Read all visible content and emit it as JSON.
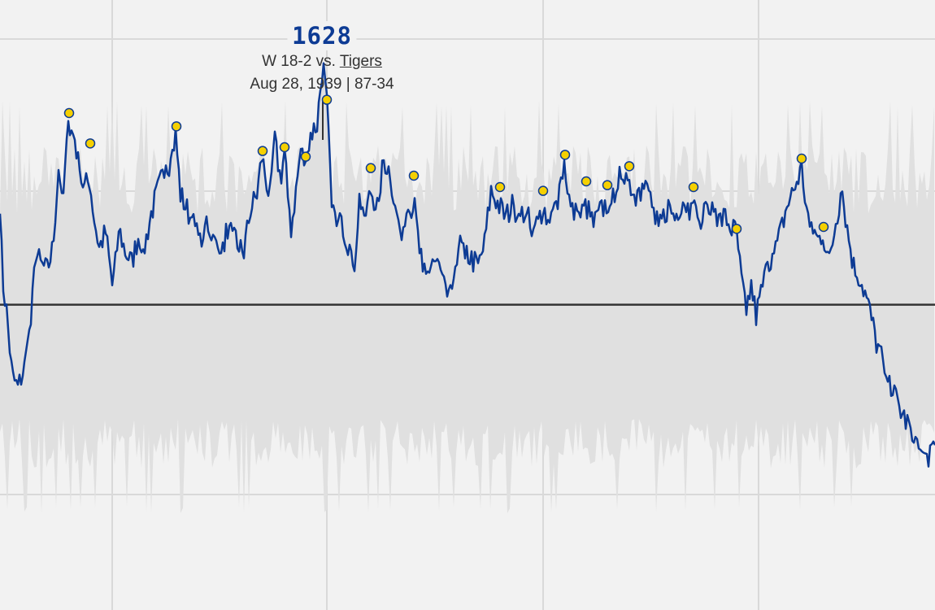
{
  "tooltip": {
    "rating": "1628",
    "result_prefix": "W 18-2 vs.",
    "opponent": "Tigers",
    "date_record": "Aug 28, 1939 | 87-34"
  },
  "colors": {
    "background": "#f2f2f2",
    "grid": "#d9d9d9",
    "band": "#e0e0e0",
    "line": "#0d3b94",
    "marker_fill": "#f5d000",
    "marker_stroke": "#0d3b94",
    "baseline": "#333333"
  },
  "chart_data": {
    "type": "line",
    "grid": true,
    "baseline_y": 1500,
    "ylim": [
      1400,
      1640
    ],
    "highlight_point": {
      "game": 397,
      "rating": 1628
    },
    "keypoints": [
      [
        0,
        1546
      ],
      [
        4,
        1510
      ],
      [
        8,
        1497
      ],
      [
        15,
        1462
      ],
      [
        22,
        1456
      ],
      [
        30,
        1467
      ],
      [
        38,
        1490
      ],
      [
        44,
        1528
      ],
      [
        50,
        1521
      ],
      [
        58,
        1518
      ],
      [
        65,
        1530
      ],
      [
        72,
        1572
      ],
      [
        78,
        1558
      ],
      [
        84,
        1594
      ],
      [
        92,
        1588
      ],
      [
        98,
        1568
      ],
      [
        104,
        1562
      ],
      [
        110,
        1566
      ],
      [
        116,
        1545
      ],
      [
        122,
        1530
      ],
      [
        130,
        1538
      ],
      [
        138,
        1510
      ],
      [
        146,
        1540
      ],
      [
        154,
        1528
      ],
      [
        162,
        1522
      ],
      [
        170,
        1536
      ],
      [
        178,
        1531
      ],
      [
        186,
        1548
      ],
      [
        194,
        1560
      ],
      [
        202,
        1570
      ],
      [
        210,
        1575
      ],
      [
        216,
        1590
      ],
      [
        222,
        1558
      ],
      [
        230,
        1550
      ],
      [
        238,
        1542
      ],
      [
        246,
        1532
      ],
      [
        254,
        1544
      ],
      [
        262,
        1536
      ],
      [
        270,
        1524
      ],
      [
        280,
        1540
      ],
      [
        290,
        1534
      ],
      [
        300,
        1528
      ],
      [
        308,
        1550
      ],
      [
        316,
        1558
      ],
      [
        322,
        1578
      ],
      [
        330,
        1560
      ],
      [
        338,
        1586
      ],
      [
        345,
        1566
      ],
      [
        350,
        1581
      ],
      [
        358,
        1540
      ],
      [
        364,
        1560
      ],
      [
        370,
        1582
      ],
      [
        376,
        1572
      ],
      [
        382,
        1590
      ],
      [
        390,
        1595
      ],
      [
        397,
        1628
      ],
      [
        402,
        1605
      ],
      [
        408,
        1555
      ],
      [
        414,
        1540
      ],
      [
        420,
        1544
      ],
      [
        428,
        1532
      ],
      [
        436,
        1522
      ],
      [
        442,
        1556
      ],
      [
        450,
        1548
      ],
      [
        456,
        1560
      ],
      [
        464,
        1552
      ],
      [
        472,
        1576
      ],
      [
        480,
        1570
      ],
      [
        486,
        1550
      ],
      [
        494,
        1540
      ],
      [
        502,
        1548
      ],
      [
        509,
        1554
      ],
      [
        516,
        1528
      ],
      [
        524,
        1514
      ],
      [
        532,
        1524
      ],
      [
        540,
        1520
      ],
      [
        548,
        1506
      ],
      [
        556,
        1512
      ],
      [
        564,
        1532
      ],
      [
        572,
        1528
      ],
      [
        580,
        1524
      ],
      [
        588,
        1520
      ],
      [
        596,
        1532
      ],
      [
        604,
        1560
      ],
      [
        614,
        1552
      ],
      [
        622,
        1546
      ],
      [
        630,
        1552
      ],
      [
        640,
        1544
      ],
      [
        648,
        1552
      ],
      [
        656,
        1538
      ],
      [
        668,
        1550
      ],
      [
        676,
        1542
      ],
      [
        686,
        1556
      ],
      [
        694,
        1575
      ],
      [
        702,
        1550
      ],
      [
        712,
        1546
      ],
      [
        721,
        1552
      ],
      [
        730,
        1542
      ],
      [
        740,
        1550
      ],
      [
        748,
        1554
      ],
      [
        756,
        1560
      ],
      [
        764,
        1570
      ],
      [
        774,
        1565
      ],
      [
        782,
        1556
      ],
      [
        790,
        1562
      ],
      [
        798,
        1560
      ],
      [
        806,
        1546
      ],
      [
        814,
        1544
      ],
      [
        822,
        1552
      ],
      [
        830,
        1546
      ],
      [
        840,
        1556
      ],
      [
        848,
        1550
      ],
      [
        853,
        1552
      ],
      [
        860,
        1540
      ],
      [
        868,
        1550
      ],
      [
        876,
        1552
      ],
      [
        884,
        1544
      ],
      [
        892,
        1546
      ],
      [
        900,
        1540
      ],
      [
        906,
        1538
      ],
      [
        912,
        1512
      ],
      [
        918,
        1498
      ],
      [
        924,
        1510
      ],
      [
        930,
        1494
      ],
      [
        938,
        1510
      ],
      [
        944,
        1520
      ],
      [
        952,
        1526
      ],
      [
        960,
        1538
      ],
      [
        968,
        1552
      ],
      [
        976,
        1560
      ],
      [
        986,
        1572
      ],
      [
        992,
        1550
      ],
      [
        1000,
        1540
      ],
      [
        1006,
        1534
      ],
      [
        1012,
        1538
      ],
      [
        1020,
        1522
      ],
      [
        1028,
        1544
      ],
      [
        1036,
        1560
      ],
      [
        1042,
        1540
      ],
      [
        1050,
        1520
      ],
      [
        1058,
        1514
      ],
      [
        1064,
        1506
      ],
      [
        1070,
        1496
      ],
      [
        1078,
        1480
      ],
      [
        1086,
        1470
      ],
      [
        1094,
        1460
      ],
      [
        1102,
        1450
      ],
      [
        1110,
        1442
      ],
      [
        1118,
        1436
      ],
      [
        1126,
        1428
      ],
      [
        1134,
        1420
      ],
      [
        1142,
        1418
      ],
      [
        1150,
        1430
      ]
    ],
    "markers": [
      [
        85,
        1601
      ],
      [
        111,
        1585
      ],
      [
        217,
        1594
      ],
      [
        323,
        1581
      ],
      [
        350,
        1583
      ],
      [
        376,
        1578
      ],
      [
        402,
        1608
      ],
      [
        456,
        1572
      ],
      [
        509,
        1568
      ],
      [
        615,
        1562
      ],
      [
        668,
        1560
      ],
      [
        695,
        1579
      ],
      [
        721,
        1565
      ],
      [
        747,
        1563
      ],
      [
        774,
        1573
      ],
      [
        853,
        1562
      ],
      [
        906,
        1540
      ],
      [
        986,
        1577
      ],
      [
        1013,
        1541
      ]
    ]
  }
}
